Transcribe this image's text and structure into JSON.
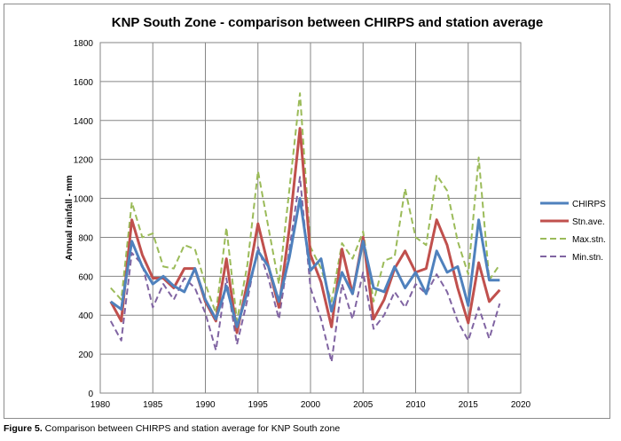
{
  "chart_data": {
    "type": "line",
    "title": "KNP South Zone - comparison between CHIRPS and station average",
    "xlabel": "",
    "ylabel": "Annual rainfall - mm",
    "xlim": [
      1980,
      2020
    ],
    "ylim": [
      0,
      1800
    ],
    "xticks": [
      1980,
      1985,
      1990,
      1995,
      2000,
      2005,
      2010,
      2015,
      2020
    ],
    "yticks": [
      0,
      200,
      400,
      600,
      800,
      1000,
      1200,
      1400,
      1600,
      1800
    ],
    "grid": true,
    "legend_position": "right",
    "x": [
      1981,
      1982,
      1983,
      1984,
      1985,
      1986,
      1987,
      1988,
      1989,
      1990,
      1991,
      1992,
      1993,
      1994,
      1995,
      1996,
      1997,
      1998,
      1999,
      2000,
      2001,
      2002,
      2003,
      2004,
      2005,
      2006,
      2007,
      2008,
      2009,
      2010,
      2011,
      2012,
      2013,
      2014,
      2015,
      2016,
      2017,
      2018
    ],
    "series": [
      {
        "name": "CHIRPS",
        "color": "#4f81bd",
        "dash": "solid",
        "values": [
          470,
          430,
          780,
          650,
          560,
          600,
          550,
          520,
          640,
          480,
          380,
          550,
          340,
          520,
          730,
          650,
          470,
          700,
          1000,
          630,
          690,
          420,
          620,
          510,
          780,
          540,
          520,
          650,
          540,
          620,
          510,
          730,
          620,
          650,
          450,
          890,
          580,
          580
        ]
      },
      {
        "name": "Stn.ave.",
        "color": "#c0504d",
        "dash": "solid",
        "values": [
          470,
          370,
          890,
          710,
          590,
          590,
          540,
          640,
          640,
          470,
          370,
          690,
          310,
          570,
          870,
          650,
          440,
          850,
          1360,
          710,
          570,
          340,
          740,
          510,
          800,
          380,
          480,
          640,
          730,
          620,
          640,
          890,
          760,
          540,
          360,
          670,
          470,
          530
        ]
      },
      {
        "name": "Max.stn.",
        "color": "#9bbb59",
        "dash": "dashed",
        "values": [
          540,
          480,
          980,
          800,
          820,
          650,
          640,
          760,
          740,
          560,
          410,
          850,
          370,
          660,
          1140,
          850,
          560,
          1050,
          1540,
          750,
          640,
          470,
          770,
          690,
          830,
          470,
          680,
          700,
          1050,
          800,
          760,
          1120,
          1040,
          780,
          610,
          1210,
          580,
          660
        ]
      },
      {
        "name": "Min.stn.",
        "color": "#8064a2",
        "dash": "dashed",
        "values": [
          370,
          270,
          720,
          660,
          440,
          560,
          480,
          590,
          540,
          410,
          220,
          590,
          250,
          480,
          750,
          590,
          380,
          740,
          1110,
          540,
          380,
          160,
          560,
          380,
          620,
          330,
          400,
          520,
          440,
          560,
          510,
          610,
          520,
          370,
          270,
          440,
          280,
          460
        ]
      }
    ]
  },
  "caption": {
    "label": "Figure 5.",
    "text": " Comparison between CHIRPS and station average for KNP South zone"
  }
}
